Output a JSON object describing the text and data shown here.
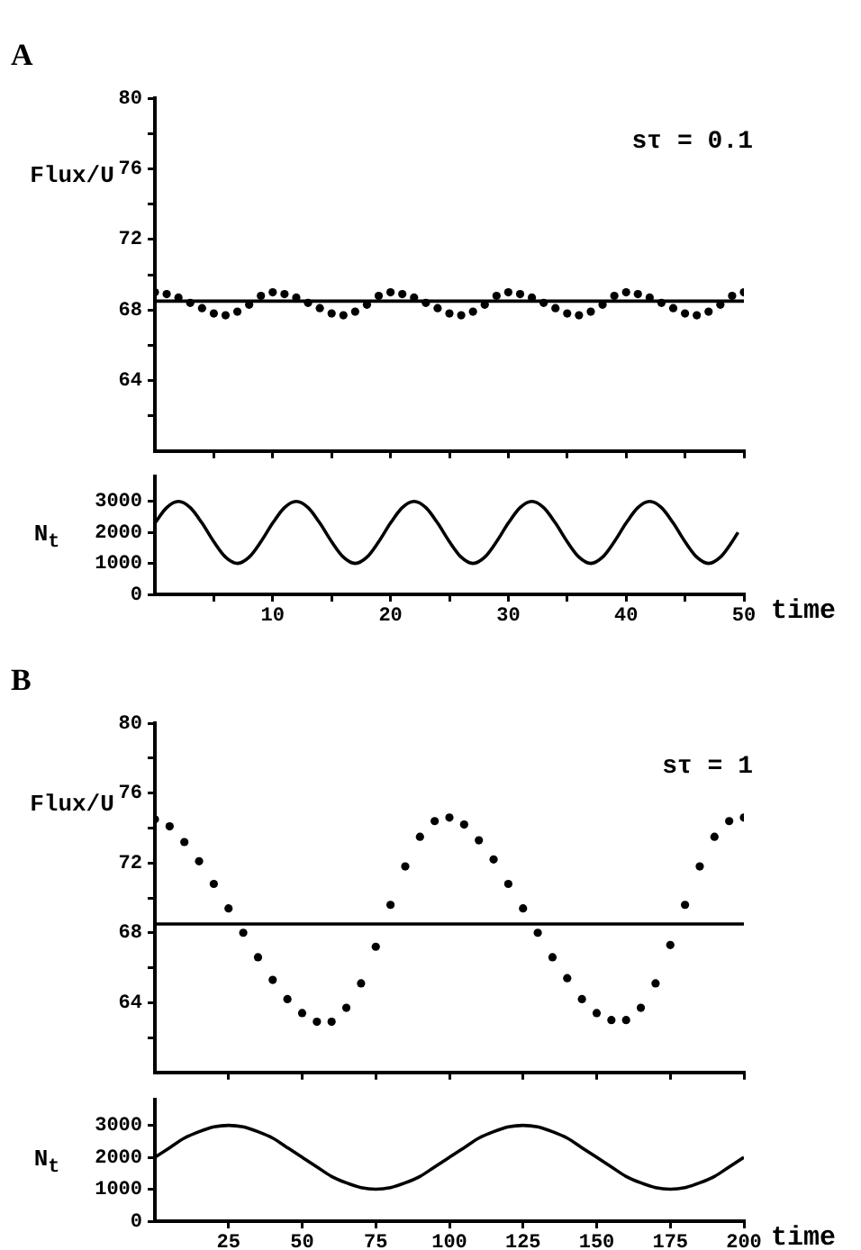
{
  "chart_data": [
    {
      "type": "scatter",
      "title": "A",
      "ylabel": "Flux/U",
      "annotations": [
        "sτ = 0.1"
      ],
      "marker": "circle",
      "tick_labels": "y",
      "x": [
        0,
        1,
        2,
        3,
        4,
        5,
        6,
        7,
        8,
        9,
        10,
        11,
        12,
        13,
        14,
        15,
        16,
        17,
        18,
        19,
        20,
        21,
        22,
        23,
        24,
        25,
        26,
        27,
        28,
        29,
        30,
        31,
        32,
        33,
        34,
        35,
        36,
        37,
        38,
        39,
        40,
        41,
        42,
        43,
        44,
        45,
        46,
        47,
        48,
        49,
        50
      ],
      "series": [
        {
          "color": "#000000",
          "values": [
            69.0,
            68.9,
            68.7,
            68.4,
            68.1,
            67.8,
            67.7,
            67.9,
            68.3,
            68.8,
            69.0,
            68.9,
            68.7,
            68.4,
            68.1,
            67.8,
            67.7,
            67.9,
            68.3,
            68.8,
            69.0,
            68.9,
            68.7,
            68.4,
            68.1,
            67.8,
            67.7,
            67.9,
            68.3,
            68.8,
            69.0,
            68.9,
            68.7,
            68.4,
            68.1,
            67.8,
            67.7,
            67.9,
            68.3,
            68.8,
            69.0,
            68.9,
            68.7,
            68.4,
            68.1,
            67.8,
            67.7,
            67.9,
            68.3,
            68.8,
            69.0
          ]
        }
      ],
      "ref_lines": [
        {
          "axis": "y",
          "value": 68.5,
          "color": "#000000"
        }
      ],
      "xlim": [
        0,
        50
      ],
      "xticks": [
        {
          "value": 5,
          "label": null
        },
        {
          "value": 10,
          "label": null
        },
        {
          "value": 15,
          "label": null
        },
        {
          "value": 20,
          "label": null
        },
        {
          "value": 25,
          "label": null
        },
        {
          "value": 30,
          "label": null
        },
        {
          "value": 35,
          "label": null
        },
        {
          "value": 40,
          "label": null
        },
        {
          "value": 45,
          "label": null
        },
        {
          "value": 50,
          "label": null
        }
      ],
      "ylim": [
        60,
        80
      ],
      "yticks": [
        {
          "value": 62,
          "label": null
        },
        64,
        {
          "value": 66,
          "label": null
        },
        68,
        {
          "value": 70,
          "label": null
        },
        72,
        {
          "value": 74,
          "label": null
        },
        76,
        {
          "value": 78,
          "label": null
        },
        80
      ]
    },
    {
      "type": "line",
      "ylabel": "N$_{t}$",
      "xlabel": "time",
      "marker": "none",
      "x": [
        0,
        1,
        2,
        3,
        4,
        5,
        6,
        7,
        8,
        9,
        10,
        11,
        12,
        13,
        14,
        15,
        16,
        17,
        18,
        19,
        20,
        21,
        22,
        23,
        24,
        25,
        26,
        27,
        28,
        29,
        30,
        31,
        32,
        33,
        34,
        35,
        36,
        37,
        38,
        39,
        40,
        41,
        42,
        43,
        44,
        45,
        46,
        47,
        48,
        49,
        49.5
      ],
      "series": [
        {
          "color": "#000000",
          "values": [
            2300,
            2800,
            3000,
            2800,
            2300,
            1700,
            1200,
            1000,
            1200,
            1700,
            2300,
            2800,
            3000,
            2800,
            2300,
            1700,
            1200,
            1000,
            1200,
            1700,
            2300,
            2800,
            3000,
            2800,
            2300,
            1700,
            1200,
            1000,
            1200,
            1700,
            2300,
            2800,
            3000,
            2800,
            2300,
            1700,
            1200,
            1000,
            1200,
            1700,
            2300,
            2800,
            3000,
            2800,
            2300,
            1700,
            1200,
            1000,
            1200,
            1700,
            2000
          ]
        }
      ],
      "xlim": [
        0,
        50
      ],
      "xticks": [
        {
          "value": 5,
          "label": null
        },
        10,
        {
          "value": 15,
          "label": null
        },
        20,
        {
          "value": 25,
          "label": null
        },
        30,
        {
          "value": 35,
          "label": null
        },
        40,
        {
          "value": 45,
          "label": null
        },
        50
      ],
      "ylim": [
        0,
        3800
      ],
      "yticks": [
        0,
        1000,
        2000,
        3000
      ]
    },
    {
      "type": "scatter",
      "title": "B",
      "ylabel": "Flux/U",
      "annotations": [
        "sτ = 1"
      ],
      "marker": "circle",
      "tick_labels": "y",
      "x": [
        0,
        5,
        10,
        15,
        20,
        25,
        30,
        35,
        40,
        45,
        50,
        55,
        60,
        65,
        70,
        75,
        80,
        85,
        90,
        95,
        100,
        105,
        110,
        115,
        120,
        125,
        130,
        135,
        140,
        145,
        150,
        155,
        160,
        165,
        170,
        175,
        180,
        185,
        190,
        195,
        200
      ],
      "series": [
        {
          "color": "#000000",
          "values": [
            74.5,
            74.1,
            73.2,
            72.1,
            70.8,
            69.4,
            68.0,
            66.6,
            65.3,
            64.2,
            63.4,
            62.9,
            62.9,
            63.7,
            65.1,
            67.2,
            69.6,
            71.8,
            73.5,
            74.4,
            74.6,
            74.2,
            73.3,
            72.2,
            70.8,
            69.4,
            68.0,
            66.6,
            65.4,
            64.2,
            63.4,
            63.0,
            63.0,
            63.7,
            65.1,
            67.3,
            69.6,
            71.8,
            73.5,
            74.4,
            74.6
          ]
        }
      ],
      "ref_lines": [
        {
          "axis": "y",
          "value": 68.5,
          "color": "#000000"
        }
      ],
      "xlim": [
        0,
        200
      ],
      "xticks": [
        {
          "value": 25,
          "label": null
        },
        {
          "value": 50,
          "label": null
        },
        {
          "value": 75,
          "label": null
        },
        {
          "value": 100,
          "label": null
        },
        {
          "value": 125,
          "label": null
        },
        {
          "value": 150,
          "label": null
        },
        {
          "value": 175,
          "label": null
        },
        {
          "value": 200,
          "label": null
        }
      ],
      "ylim": [
        60,
        80
      ],
      "yticks": [
        {
          "value": 62,
          "label": null
        },
        64,
        {
          "value": 66,
          "label": null
        },
        68,
        {
          "value": 70,
          "label": null
        },
        72,
        {
          "value": 74,
          "label": null
        },
        76,
        {
          "value": 78,
          "label": null
        },
        80
      ]
    },
    {
      "type": "line",
      "ylabel": "N$_{t}$",
      "xlabel": "time",
      "marker": "none",
      "x": [
        0,
        5,
        10,
        15,
        20,
        25,
        30,
        35,
        40,
        45,
        50,
        55,
        60,
        65,
        70,
        75,
        80,
        85,
        90,
        95,
        100,
        105,
        110,
        115,
        120,
        125,
        130,
        135,
        140,
        145,
        150,
        155,
        160,
        165,
        170,
        175,
        180,
        185,
        190,
        195,
        200
      ],
      "series": [
        {
          "color": "#000000",
          "values": [
            2000,
            2300,
            2600,
            2800,
            2950,
            3000,
            2950,
            2800,
            2600,
            2300,
            2000,
            1700,
            1400,
            1200,
            1050,
            1000,
            1050,
            1200,
            1400,
            1700,
            2000,
            2300,
            2600,
            2800,
            2950,
            3000,
            2950,
            2800,
            2600,
            2300,
            2000,
            1700,
            1400,
            1200,
            1050,
            1000,
            1050,
            1200,
            1400,
            1700,
            2000
          ]
        }
      ],
      "xlim": [
        0,
        200
      ],
      "xticks": [
        25,
        50,
        75,
        100,
        125,
        150,
        175,
        200
      ],
      "ylim": [
        0,
        3800
      ],
      "yticks": [
        0,
        1000,
        2000,
        3000
      ]
    }
  ]
}
